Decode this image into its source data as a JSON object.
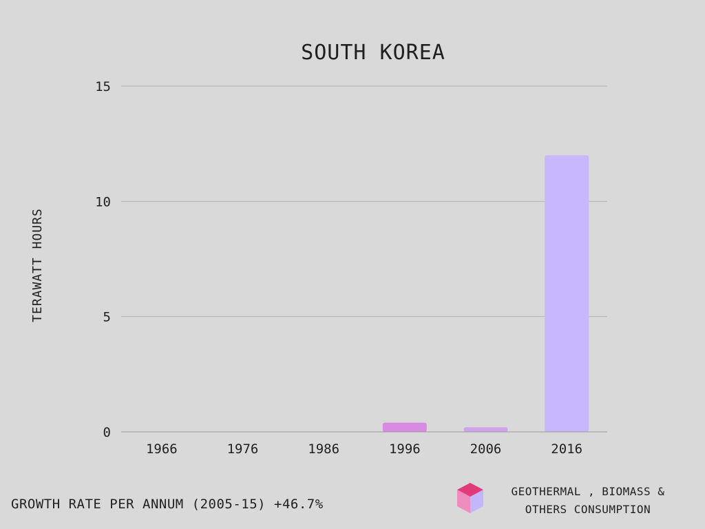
{
  "chart_data": {
    "type": "bar",
    "title": "SOUTH KOREA",
    "ylabel": "TERAWATT HOURS",
    "xlabel": "",
    "categories": [
      "1966",
      "1976",
      "1986",
      "1996",
      "2006",
      "2016"
    ],
    "values": [
      0,
      0,
      0,
      0.4,
      0.2,
      12.0
    ],
    "bar_colors": [
      "#d88be0",
      "#d88be0",
      "#d88be0",
      "#d88be0",
      "#cfa2ec",
      "#c7b7fb"
    ],
    "ylim": [
      0,
      15
    ],
    "yticks": [
      0,
      5,
      10,
      15
    ],
    "grid": true,
    "legend_position": "bottom-right"
  },
  "footer": {
    "growth_rate": "GROWTH RATE PER ANNUM (2005-15) +46.7%"
  },
  "legend": {
    "label_line1": "GEOTHERMAL , BIOMASS &",
    "label_line2": "OTHERS CONSUMPTION",
    "icon": "cube-icon",
    "icon_colors": {
      "top": "#e03a78",
      "left": "#ee8dbd",
      "right": "#c3b6fa"
    }
  },
  "colors": {
    "background": "#d9d9d9",
    "gridline": "#b3b3b3",
    "text": "#1f1f1f"
  }
}
